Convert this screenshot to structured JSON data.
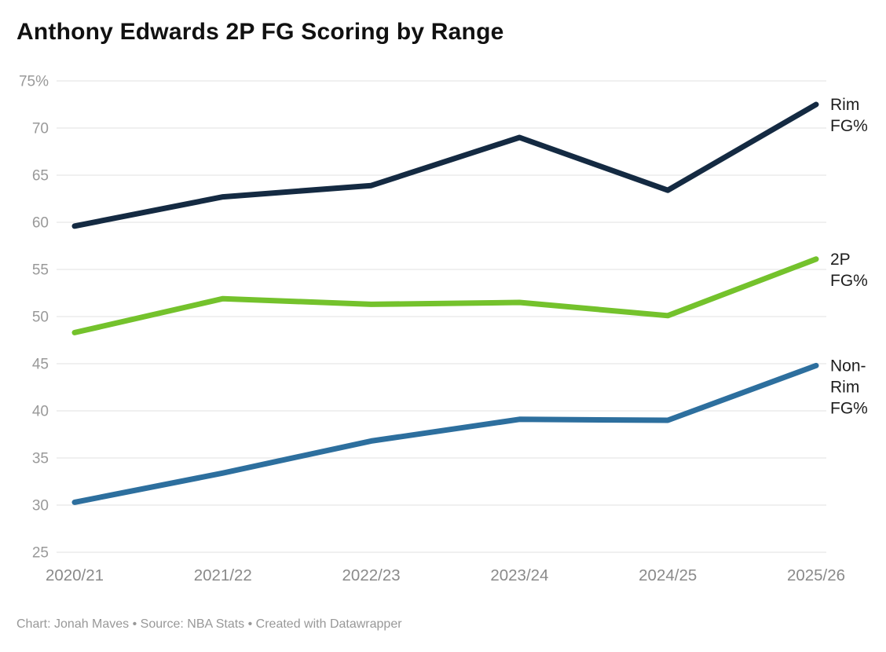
{
  "title": "Anthony Edwards 2P FG Scoring by Range",
  "footer": "Chart: Jonah Maves • Source: NBA Stats • Created with Datawrapper",
  "colors": {
    "title": "#111111",
    "gridline": "#e7e7e7",
    "y_tick_label": "#999999",
    "x_tick_label": "#8a8a8a",
    "direct_label": "#1d1d1d",
    "footer": "#989898",
    "background": "#ffffff"
  },
  "chart_data": {
    "type": "line",
    "title": "Anthony Edwards 2P FG Scoring by Range",
    "xlabel": "",
    "ylabel": "",
    "grid": true,
    "legend_position": "right-direct-labels",
    "ylim": [
      25,
      75
    ],
    "ytick_values": [
      75,
      70,
      65,
      60,
      55,
      50,
      45,
      40,
      35,
      30,
      25
    ],
    "ytick_labels": [
      "75%",
      "70",
      "65",
      "60",
      "55",
      "50",
      "45",
      "40",
      "35",
      "30",
      "25"
    ],
    "categories": [
      "2020/21",
      "2021/22",
      "2022/23",
      "2023/24",
      "2024/25",
      "2025/26"
    ],
    "series": [
      {
        "name": "Rim FG%",
        "label_lines": [
          "Rim",
          "FG%"
        ],
        "color": "#142a42",
        "values": [
          59.6,
          62.7,
          63.9,
          69.0,
          63.4,
          72.5
        ]
      },
      {
        "name": "2P FG%",
        "label_lines": [
          "2P",
          "FG%"
        ],
        "color": "#74c22c",
        "values": [
          48.3,
          51.9,
          51.3,
          51.5,
          50.1,
          56.1
        ]
      },
      {
        "name": "Non-Rim FG%",
        "label_lines": [
          "Non-",
          "Rim",
          "FG%"
        ],
        "color": "#2d6f9e",
        "values": [
          30.3,
          33.4,
          36.8,
          39.1,
          39.0,
          44.8
        ]
      }
    ]
  }
}
